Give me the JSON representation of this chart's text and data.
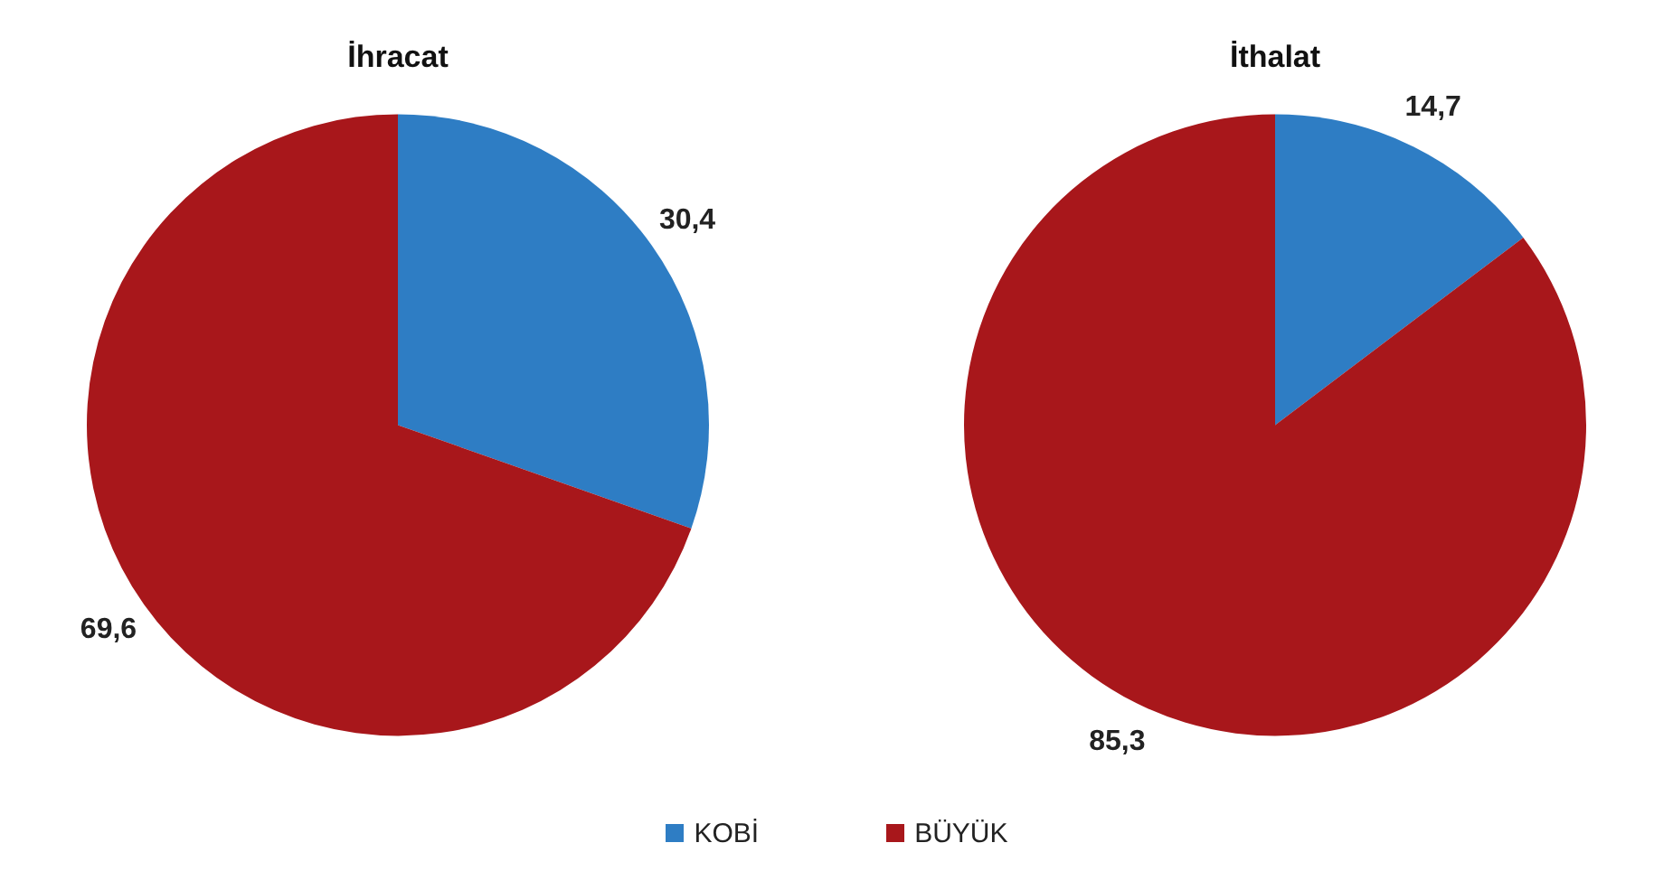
{
  "chart_data": [
    {
      "type": "pie",
      "title": "İhracat",
      "categories": [
        "KOBİ",
        "BÜYÜK"
      ],
      "values": [
        30.4,
        69.6
      ],
      "colors": [
        "#2e7dc4",
        "#a8171b"
      ],
      "value_labels": [
        "30,4",
        "69,6"
      ],
      "legend": "bottom"
    },
    {
      "type": "pie",
      "title": "İthalat",
      "categories": [
        null,
        null
      ],
      "values": [
        14.7,
        85.3
      ],
      "colors": [
        "#2e7dc4",
        "#a8171b"
      ],
      "value_labels": [
        "14,7",
        "85,3"
      ]
    }
  ]
}
